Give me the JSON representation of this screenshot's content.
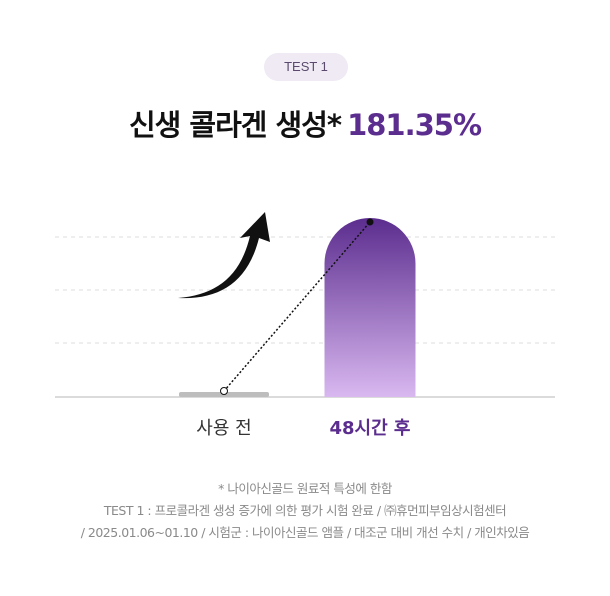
{
  "badge": "TEST 1",
  "title": {
    "text": "신생 콜라겐 생성*",
    "value": "181.35%"
  },
  "chart_data": {
    "type": "bar",
    "categories": [
      "사용 전",
      "48시간 후"
    ],
    "values": [
      0,
      181.35
    ],
    "annotation": "181.35%",
    "grid": true,
    "colors": {
      "before": "#bdbdbd",
      "after_top": "#5b2d8e",
      "after_bottom": "#d9b8f0"
    }
  },
  "notes": [
    "* 나이아신골드 원료적 특성에 한함",
    "TEST 1 : 프로콜라겐 생성 증가에 의한 평가 시험 완료 / ㈜휴먼피부임상시험센터",
    "/ 2025.01.06~01.10 / 시험군 : 나이아신골드 앰플 / 대조군 대비 개선 수치 / 개인차있음"
  ]
}
